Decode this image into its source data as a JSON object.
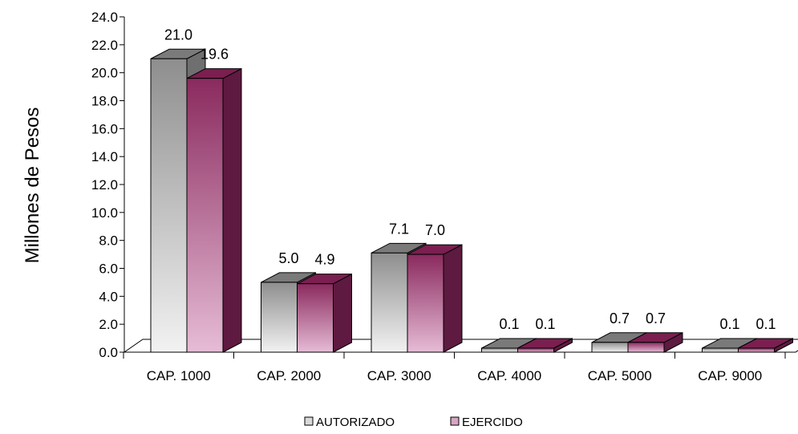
{
  "chart_data": {
    "type": "bar",
    "title": "",
    "xlabel": "",
    "ylabel": "Millones de Pesos",
    "ylim": [
      0,
      24
    ],
    "yticks": [
      "0.0",
      "2.0",
      "4.0",
      "6.0",
      "8.0",
      "10.0",
      "12.0",
      "14.0",
      "16.0",
      "18.0",
      "20.0",
      "22.0",
      "24.0"
    ],
    "categories": [
      "CAP. 1000",
      "CAP. 2000",
      "CAP. 3000",
      "CAP. 4000",
      "CAP. 5000",
      "CAP. 9000"
    ],
    "series": [
      {
        "name": "AUTORIZADO",
        "values": [
          21.0,
          5.0,
          7.1,
          0.1,
          0.7,
          0.1
        ],
        "labels": [
          "21.0",
          "5.0",
          "7.1",
          "0.1",
          "0.7",
          "0.1"
        ],
        "color": "#a9a9a9"
      },
      {
        "name": "EJERCIDO",
        "values": [
          19.6,
          4.9,
          7.0,
          0.1,
          0.7,
          0.1
        ],
        "labels": [
          "19.6",
          "4.9",
          "7.0",
          "0.1",
          "0.7",
          "0.1"
        ],
        "color": "#8b2a5f"
      }
    ],
    "legend": "bottom-center",
    "grid": false,
    "style": "3d-clustered"
  }
}
